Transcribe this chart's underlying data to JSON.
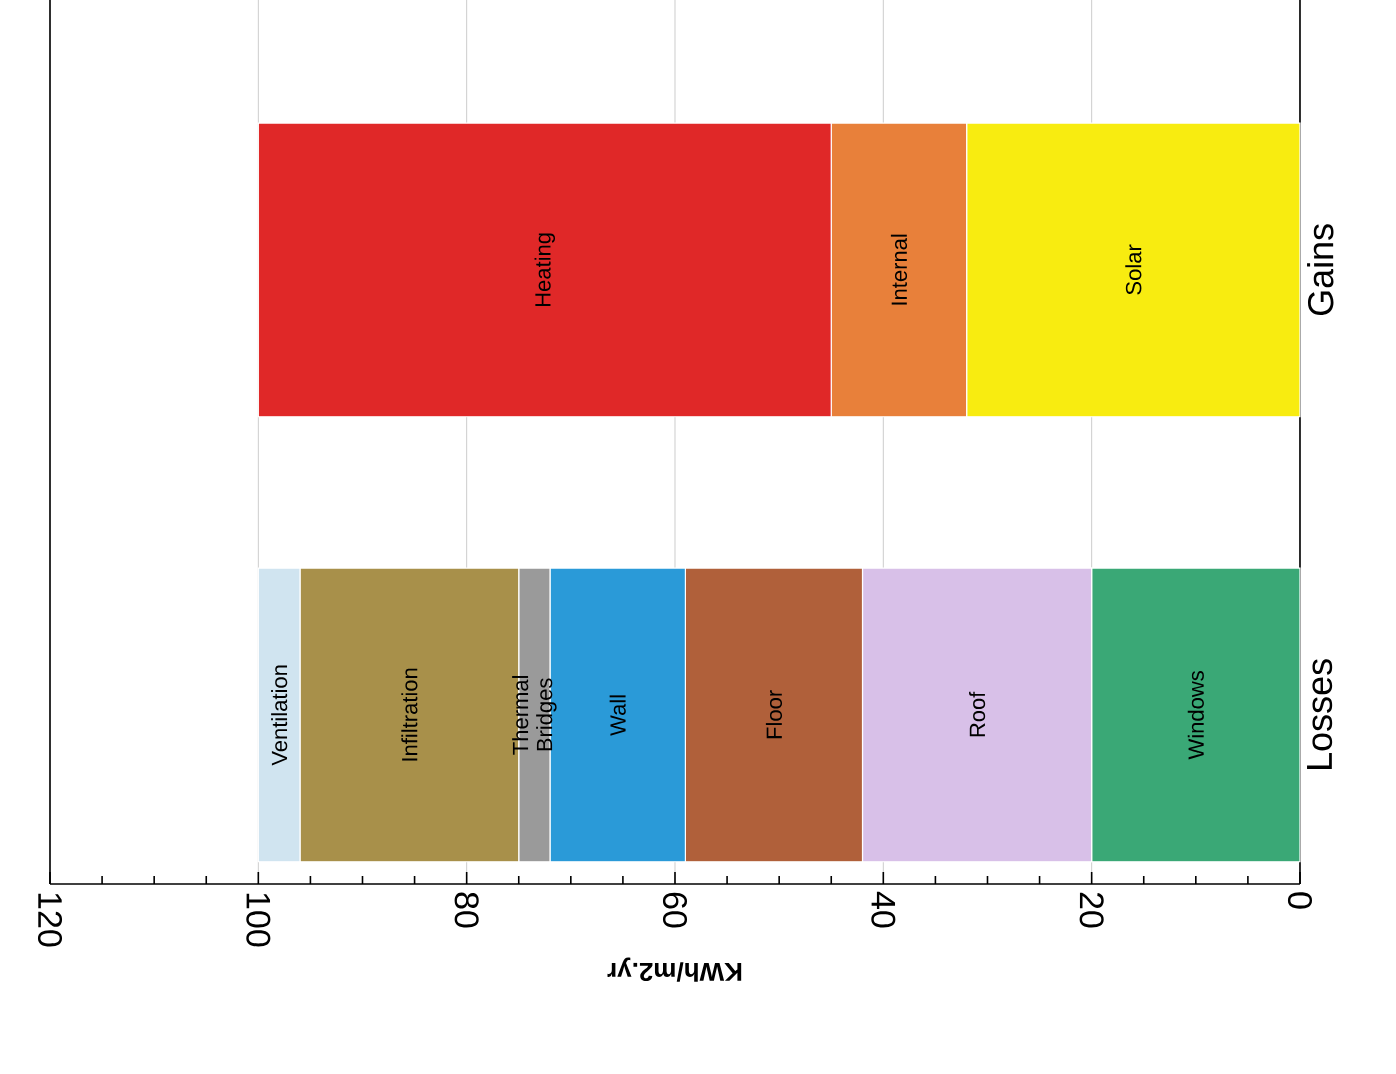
{
  "chart_data": {
    "type": "bar",
    "orientation": "horizontal",
    "stacked": true,
    "xlabel": "KWh/m2.yr",
    "categories": [
      "Gains",
      "Losses"
    ],
    "series": [
      {
        "name": "Solar",
        "color": "#f8ec10",
        "values": [
          32,
          null
        ]
      },
      {
        "name": "Internal",
        "color": "#e8803a",
        "values": [
          13,
          null
        ]
      },
      {
        "name": "Heating",
        "color": "#e02828",
        "values": [
          55,
          null
        ]
      },
      {
        "name": "Windows",
        "color": "#3aa876",
        "values": [
          null,
          20
        ]
      },
      {
        "name": "Roof",
        "color": "#d8c0e8",
        "values": [
          null,
          22
        ]
      },
      {
        "name": "Floor",
        "color": "#b0603a",
        "values": [
          null,
          17
        ]
      },
      {
        "name": "Wall",
        "color": "#2a9ad8",
        "values": [
          null,
          13
        ]
      },
      {
        "name": "Thermal Bridges",
        "color": "#9a9a9a",
        "values": [
          null,
          3
        ]
      },
      {
        "name": "Infiltration",
        "color": "#a8904a",
        "values": [
          null,
          21
        ]
      },
      {
        "name": "Ventilation",
        "color": "#d0e4f0",
        "values": [
          null,
          4
        ]
      }
    ],
    "xlim": [
      120,
      0
    ],
    "xticks": [
      0,
      20,
      40,
      60,
      80,
      100,
      120
    ],
    "grid": "x"
  }
}
